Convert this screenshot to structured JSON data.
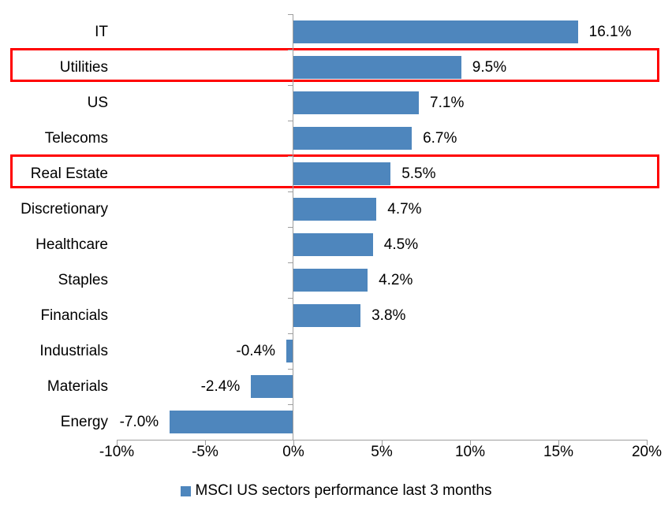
{
  "colors": {
    "bar": "#4e86bd",
    "highlight_border": "#ff0000",
    "axis": "#9e9e9e",
    "text": "#000000",
    "background": "#ffffff"
  },
  "chart_data": {
    "type": "bar",
    "orientation": "horizontal",
    "title": "",
    "categories": [
      "IT",
      "Utilities",
      "US",
      "Telecoms",
      "Real Estate",
      "Discretionary",
      "Healthcare",
      "Staples",
      "Financials",
      "Industrials",
      "Materials",
      "Energy"
    ],
    "values": [
      16.1,
      9.5,
      7.1,
      6.7,
      5.5,
      4.7,
      4.5,
      4.2,
      3.8,
      -0.4,
      -2.4,
      -7.0
    ],
    "value_labels": [
      "16.1%",
      "9.5%",
      "7.1%",
      "6.7%",
      "5.5%",
      "4.7%",
      "4.5%",
      "4.2%",
      "3.8%",
      "-0.4%",
      "-2.4%",
      "-7.0%"
    ],
    "highlighted_categories": [
      "Utilities",
      "Real Estate"
    ],
    "x_axis": {
      "min": -10,
      "max": 20,
      "ticks": [
        -10,
        -5,
        0,
        5,
        10,
        15,
        20
      ],
      "tick_labels": [
        "-10%",
        "-5%",
        "0%",
        "5%",
        "10%",
        "15%",
        "20%"
      ],
      "grid": false
    },
    "legend": {
      "label": "MSCI US sectors performance last 3 months",
      "position": "bottom"
    }
  }
}
